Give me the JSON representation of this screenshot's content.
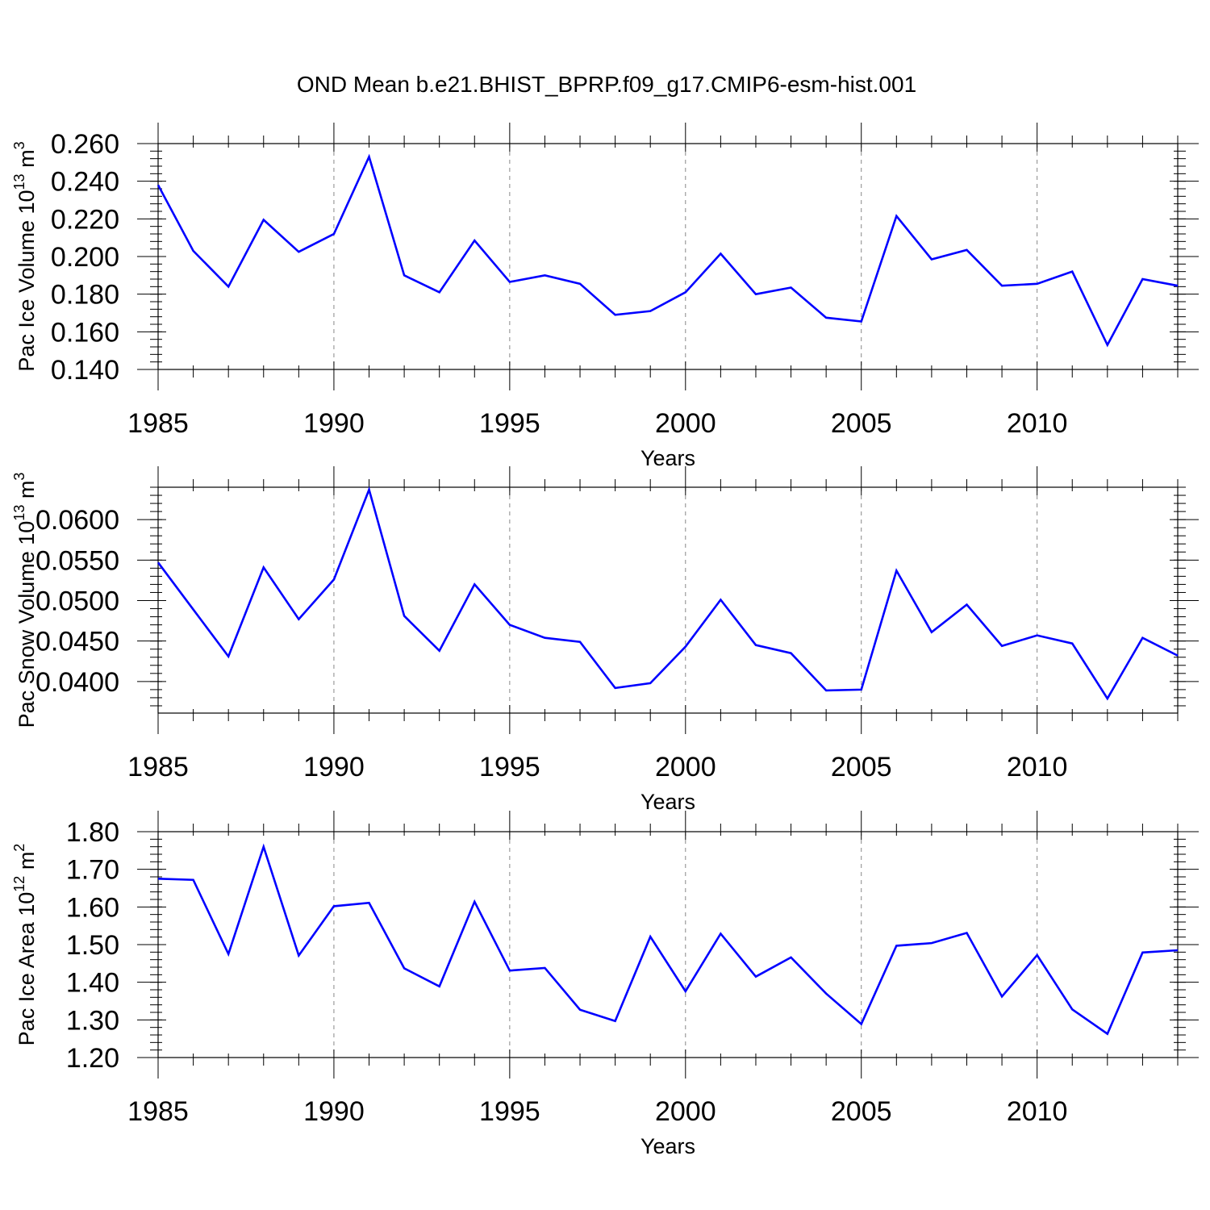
{
  "title": "OND Mean b.e21.BHIST_BPRP.f09_g17.CMIP6-esm-hist.001",
  "line_color": "#0000ff",
  "grid_color": "#888888",
  "chart_data": [
    {
      "type": "line",
      "ylabel": {
        "main": "Pac Ice Volume 10",
        "exp": "13",
        "unit": " m",
        "unit_exp": "3"
      },
      "xlabel": "Years",
      "xlim": [
        1985,
        2014
      ],
      "ylim": [
        0.14,
        0.26
      ],
      "x_ticks": [
        1985,
        1990,
        1995,
        2000,
        2005,
        2010
      ],
      "y_ticks": [
        "0.140",
        "0.160",
        "0.180",
        "0.200",
        "0.220",
        "0.240",
        "0.260"
      ],
      "y_tick_values": [
        0.14,
        0.16,
        0.18,
        0.2,
        0.22,
        0.24,
        0.26
      ],
      "y_minor_step": 0.004,
      "grid": "vertical dashed at major x ticks",
      "x": [
        1985,
        1986,
        1987,
        1988,
        1989,
        1990,
        1991,
        1992,
        1993,
        1994,
        1995,
        1996,
        1997,
        1998,
        1999,
        2000,
        2001,
        2002,
        2003,
        2004,
        2005,
        2006,
        2007,
        2008,
        2009,
        2010,
        2011,
        2012,
        2013,
        2014
      ],
      "series": [
        {
          "values": [
            0.238,
            0.203,
            0.184,
            0.2195,
            0.2025,
            0.212,
            0.253,
            0.19,
            0.181,
            0.2085,
            0.1865,
            0.19,
            0.1855,
            0.169,
            0.171,
            0.181,
            0.2015,
            0.18,
            0.1835,
            0.1675,
            0.1655,
            0.2215,
            0.1985,
            0.2035,
            0.1845,
            0.1855,
            0.192,
            0.153,
            0.188,
            0.1845
          ]
        }
      ]
    },
    {
      "type": "line",
      "ylabel": {
        "main": "Pac Snow Volume 10",
        "exp": "13",
        "unit": " m",
        "unit_exp": "3"
      },
      "xlabel": "Years",
      "xlim": [
        1985,
        2014
      ],
      "ylim": [
        0.0361,
        0.064
      ],
      "x_ticks": [
        1985,
        1990,
        1995,
        2000,
        2005,
        2010
      ],
      "y_ticks": [
        "0.0400",
        "0.0450",
        "0.0500",
        "0.0550",
        "0.0600"
      ],
      "y_tick_values": [
        0.04,
        0.045,
        0.05,
        0.055,
        0.06
      ],
      "y_minor_step": 0.001,
      "grid": "vertical dashed at major x ticks",
      "x": [
        1985,
        1986,
        1987,
        1988,
        1989,
        1990,
        1991,
        1992,
        1993,
        1994,
        1995,
        1996,
        1997,
        1998,
        1999,
        2000,
        2001,
        2002,
        2003,
        2004,
        2005,
        2006,
        2007,
        2008,
        2009,
        2010,
        2011,
        2012,
        2013,
        2014
      ],
      "series": [
        {
          "values": [
            0.0547,
            0.0489,
            0.0431,
            0.0541,
            0.0477,
            0.0526,
            0.0637,
            0.0481,
            0.0438,
            0.052,
            0.047,
            0.0454,
            0.0449,
            0.0392,
            0.0398,
            0.0443,
            0.0501,
            0.0445,
            0.0435,
            0.0389,
            0.039,
            0.0537,
            0.0461,
            0.0495,
            0.0444,
            0.0457,
            0.0447,
            0.0379,
            0.0454,
            0.0432
          ]
        }
      ]
    },
    {
      "type": "line",
      "ylabel": {
        "main": "Pac Ice Area 10",
        "exp": "12",
        "unit": " m",
        "unit_exp": "2"
      },
      "xlabel": "Years",
      "xlim": [
        1985,
        2014
      ],
      "ylim": [
        1.2,
        1.8
      ],
      "x_ticks": [
        1985,
        1990,
        1995,
        2000,
        2005,
        2010
      ],
      "y_ticks": [
        "1.20",
        "1.30",
        "1.40",
        "1.50",
        "1.60",
        "1.70",
        "1.80"
      ],
      "y_tick_values": [
        1.2,
        1.3,
        1.4,
        1.5,
        1.6,
        1.7,
        1.8
      ],
      "y_minor_step": 0.02,
      "grid": "vertical dashed at major x ticks",
      "x": [
        1985,
        1986,
        1987,
        1988,
        1989,
        1990,
        1991,
        1992,
        1993,
        1994,
        1995,
        1996,
        1997,
        1998,
        1999,
        2000,
        2001,
        2002,
        2003,
        2004,
        2005,
        2006,
        2007,
        2008,
        2009,
        2010,
        2011,
        2012,
        2013,
        2014
      ],
      "series": [
        {
          "values": [
            1.675,
            1.672,
            1.475,
            1.76,
            1.471,
            1.602,
            1.611,
            1.437,
            1.389,
            1.614,
            1.431,
            1.438,
            1.327,
            1.297,
            1.521,
            1.376,
            1.529,
            1.415,
            1.466,
            1.37,
            1.289,
            1.497,
            1.504,
            1.531,
            1.362,
            1.472,
            1.328,
            1.263,
            1.479,
            1.485
          ]
        }
      ]
    }
  ]
}
